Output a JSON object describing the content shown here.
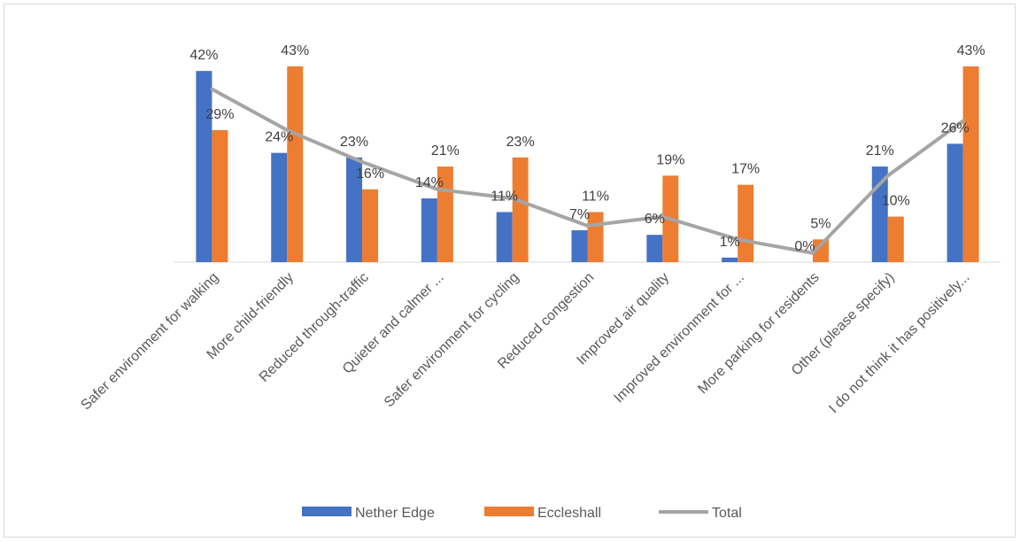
{
  "chart_data": {
    "type": "bar",
    "categories": [
      "Safer environment for walking",
      "More child-friendly",
      "Reduced through-traffic",
      "Quieter and calmer ...",
      "Safer environment for cycling",
      "Reduced congestion",
      "Improved air quality",
      "Improved environment for ...",
      "More parking for residents",
      "Other (please specify)",
      "I do not think it has positively..."
    ],
    "series": [
      {
        "name": "Nether Edge",
        "type": "bar",
        "color": "#4472c4",
        "values": [
          42,
          24,
          23,
          14,
          11,
          7,
          6,
          1,
          0,
          21,
          26
        ],
        "labels": [
          "42%",
          "24%",
          "23%",
          "14%",
          "11%",
          "7%",
          "6%",
          "1%",
          "0%",
          "21%",
          "26%"
        ]
      },
      {
        "name": "Eccleshall",
        "type": "bar",
        "color": "#ed7d31",
        "values": [
          29,
          43,
          16,
          21,
          23,
          11,
          19,
          17,
          5,
          10,
          43
        ],
        "labels": [
          "29%",
          "43%",
          "16%",
          "21%",
          "23%",
          "11%",
          "19%",
          "17%",
          "5%",
          "10%",
          "43%"
        ]
      },
      {
        "name": "Total",
        "type": "line",
        "color": "#a5a5a5",
        "values": [
          38,
          29,
          22,
          16,
          14,
          8,
          10,
          5,
          2,
          19,
          31
        ]
      }
    ],
    "ylim": [
      0,
      45
    ],
    "grid": false,
    "legend_position": "bottom"
  }
}
